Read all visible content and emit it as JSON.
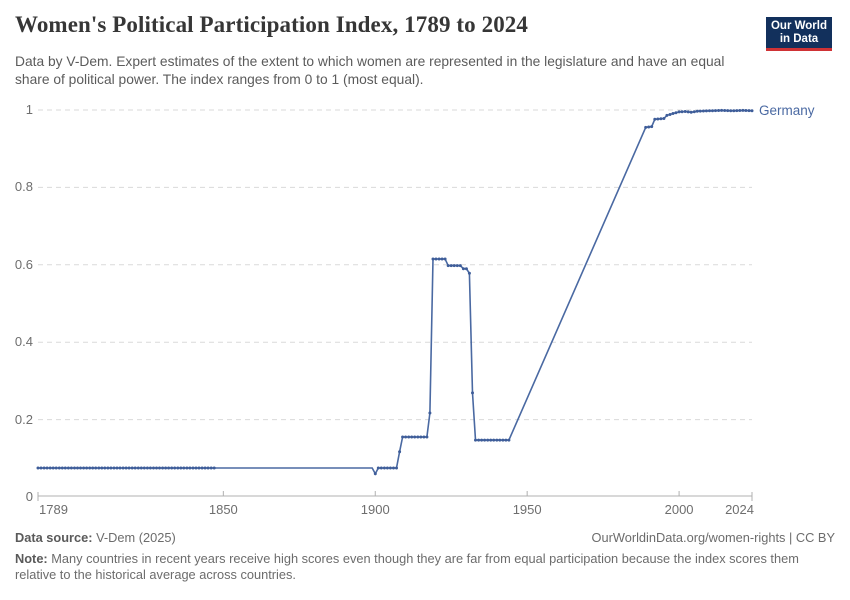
{
  "header": {
    "title": "Women's Political Participation Index, 1789 to 2024",
    "subtitle": "Data by V-Dem. Expert estimates of the extent to which women are represented in the legislature and have an equal share of political power. The index ranges from 0 to 1 (most equal).",
    "logo": {
      "line1": "Our World",
      "line2": "in Data"
    }
  },
  "chart_data": {
    "type": "line",
    "title": "Women's Political Participation Index, 1789 to 2024",
    "xlabel": "",
    "ylabel": "",
    "xlim": [
      1789,
      2024
    ],
    "ylim": [
      0,
      1
    ],
    "grid": "horizontal dashed",
    "legend_position": "line-end label",
    "xticks": [
      {
        "year": 1789,
        "label": "1789",
        "align": "left"
      },
      {
        "year": 1850,
        "label": "1850",
        "align": "center"
      },
      {
        "year": 1900,
        "label": "1900",
        "align": "center"
      },
      {
        "year": 1950,
        "label": "1950",
        "align": "center"
      },
      {
        "year": 2000,
        "label": "2000",
        "align": "center"
      },
      {
        "year": 2024,
        "label": "2024",
        "align": "right"
      }
    ],
    "yticks": [
      {
        "v": 0,
        "label": "0"
      },
      {
        "v": 0.2,
        "label": "0.2"
      },
      {
        "v": 0.4,
        "label": "0.4"
      },
      {
        "v": 0.6,
        "label": "0.6"
      },
      {
        "v": 0.8,
        "label": "0.8"
      },
      {
        "v": 1,
        "label": "1"
      }
    ],
    "series": [
      {
        "name": "Germany",
        "color": "#4a69a2",
        "marker_color": "#3e5d99",
        "points": [
          [
            1789,
            0.075
          ],
          [
            1899,
            0.075
          ],
          [
            1900,
            0.06
          ],
          [
            1901,
            0.075
          ],
          [
            1907,
            0.075
          ],
          [
            1908,
            0.117
          ],
          [
            1909,
            0.155
          ],
          [
            1917,
            0.155
          ],
          [
            1918,
            0.217
          ],
          [
            1919,
            0.615
          ],
          [
            1923,
            0.615
          ],
          [
            1924,
            0.598
          ],
          [
            1928,
            0.598
          ],
          [
            1929,
            0.59
          ],
          [
            1930,
            0.59
          ],
          [
            1931,
            0.578
          ],
          [
            1932,
            0.269
          ],
          [
            1933,
            0.147
          ],
          [
            1944,
            0.147
          ],
          [
            1989,
            0.955
          ],
          [
            1991,
            0.957
          ],
          [
            1992,
            0.976
          ],
          [
            1995,
            0.978
          ],
          [
            1996,
            0.986
          ],
          [
            1998,
            0.991
          ],
          [
            2000,
            0.995
          ],
          [
            2002,
            0.996
          ],
          [
            2004,
            0.994
          ],
          [
            2006,
            0.997
          ],
          [
            2010,
            0.998
          ],
          [
            2014,
            0.999
          ],
          [
            2018,
            0.998
          ],
          [
            2021,
            0.999
          ],
          [
            2024,
            0.998
          ]
        ],
        "marker_segments": [
          [
            1789,
            1847
          ],
          [
            1900,
            1944
          ],
          [
            1989,
            2024
          ]
        ]
      }
    ]
  },
  "colors": {
    "line": "#4a69a2",
    "marker": "#3e5d99",
    "gridline": "#dadada",
    "axis": "#b0b0b0",
    "logo_bg": "#12305c",
    "logo_bar": "#cf3235"
  },
  "footer": {
    "datasource_label": "Data source:",
    "datasource_value": " V-Dem (2025)",
    "link": "OurWorldinData.org/women-rights | CC BY",
    "note_label": "Note:",
    "note_text": " Many countries in recent years receive high scores even though they are far from equal participation because the index scores them relative to the historical average across countries."
  }
}
